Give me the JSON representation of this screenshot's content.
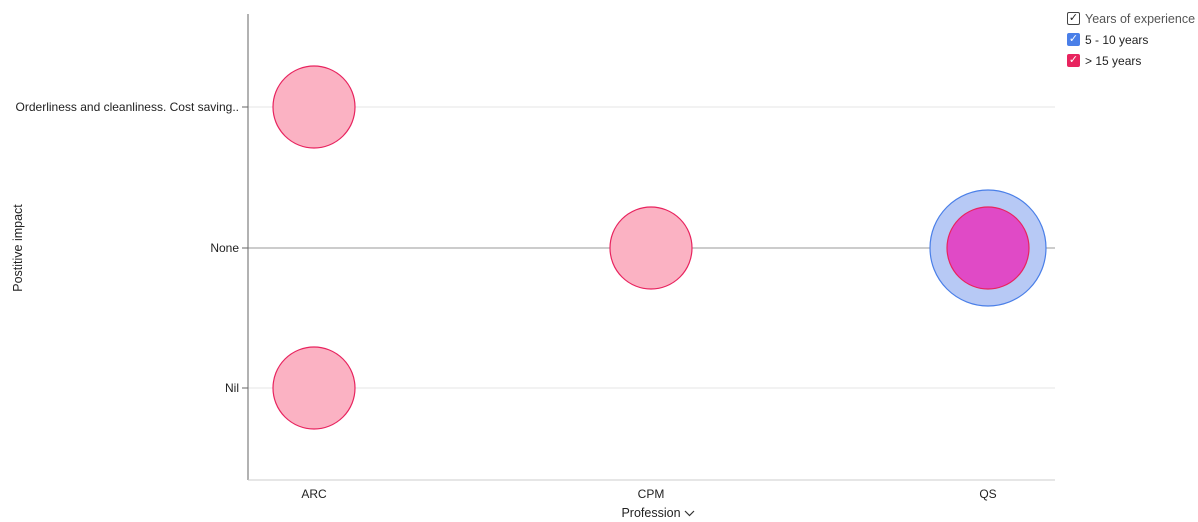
{
  "chart_data": {
    "type": "bubble",
    "xlabel": "Profession",
    "ylabel": "Postitive impact",
    "x_categories": [
      "ARC",
      "CPM",
      "QS"
    ],
    "y_categories": [
      "Nil",
      "None",
      "Orderliness and cleanliness. Cost saving.."
    ],
    "legend_title": "Years of experience",
    "legend_position": "top-right",
    "grid": true,
    "series": [
      {
        "name": "5 - 10 years",
        "color": "#4a7fe8",
        "fill": "#b7c9f5",
        "points": [
          {
            "x": "QS",
            "y": "None",
            "size": 2
          }
        ]
      },
      {
        "name": "> 15 years",
        "color": "#e8245f",
        "fill": "#fbb2c3",
        "points": [
          {
            "x": "ARC",
            "y": "Orderliness and cleanliness. Cost saving..",
            "size": 1
          },
          {
            "x": "ARC",
            "y": "Nil",
            "size": 1
          },
          {
            "x": "CPM",
            "y": "None",
            "size": 1
          },
          {
            "x": "QS",
            "y": "None",
            "size": 1
          }
        ]
      }
    ]
  },
  "legend": {
    "title": "Years of experience",
    "check_glyph": "✓"
  },
  "icons": {
    "xlabel_dropdown": "chevron-down-icon",
    "legend_check": "check-icon"
  }
}
